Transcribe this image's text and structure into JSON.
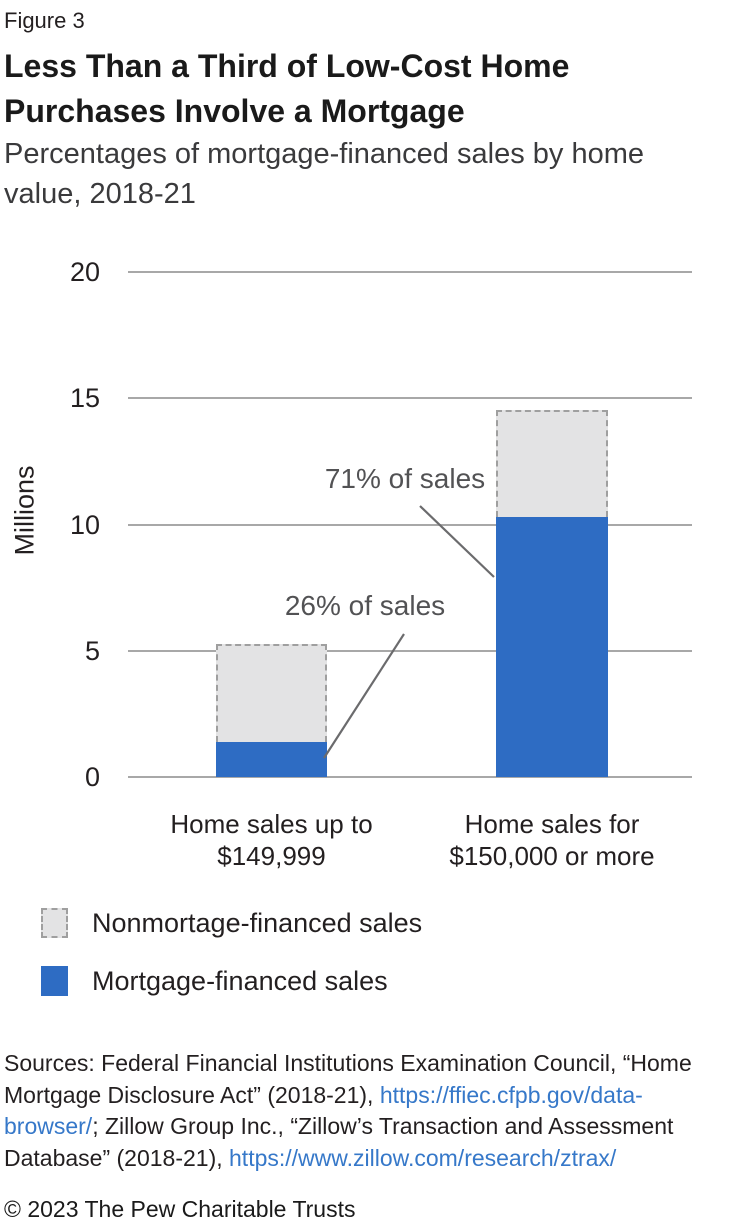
{
  "figure_label": "Figure 3",
  "title_lines": [
    "Less Than a Third of Low-Cost Home",
    "Purchases Involve a Mortgage"
  ],
  "subtitle_lines": [
    "Percentages of mortgage-financed sales by home",
    "value, 2018-21"
  ],
  "chart_data": {
    "type": "bar",
    "stacked": true,
    "title": "Less Than a Third of Low-Cost Home Purchases Involve a Mortgage",
    "subtitle": "Percentages of mortgage-financed sales by home value, 2018-21",
    "xlabel": "",
    "ylabel": "Millions",
    "ylim": [
      0,
      20
    ],
    "yticks": [
      0,
      5,
      10,
      15,
      20
    ],
    "grid": true,
    "legend_position": "bottom-left",
    "categories": [
      "Home sales up to $149,999",
      "Home sales for $150,000 or more"
    ],
    "category_label_lines": [
      [
        "Home sales up to",
        "$149,999"
      ],
      [
        "Home sales for",
        "$150,000 or more"
      ]
    ],
    "series": [
      {
        "name": "Mortgage-financed sales",
        "color": "#2e6cc3",
        "values": [
          1.4,
          10.3
        ]
      },
      {
        "name": "Nonmortgage-financed sales (dashed)",
        "color": "#e3e3e4",
        "values": [
          3.9,
          4.25
        ]
      }
    ],
    "totals": [
      5.3,
      14.55
    ],
    "annotations": [
      {
        "text": "26% of sales",
        "target_bar": 0
      },
      {
        "text": "71% of sales",
        "target_bar": 1
      }
    ]
  },
  "legend": [
    {
      "label": "Nonmortage-financed sales",
      "swatch": "dashed-gray-box"
    },
    {
      "label": "Mortgage-financed sales",
      "swatch": "solid-blue-box"
    }
  ],
  "colors": {
    "mortgage_blue": "#2e6cc3",
    "nonmortgage_gray_fill": "#e3e3e4",
    "dashed_border_gray": "#9f9f9f",
    "gridline_gray": "#a8a8a8",
    "annotation_gray": "#525254",
    "link_blue": "#3678c9"
  },
  "sources": {
    "lines": [
      [
        {
          "text": "Sources: Federal Financial Institutions Examination Council, “Home",
          "link": false
        }
      ],
      [
        {
          "text": "Mortgage Disclosure Act” (2018-21), ",
          "link": false
        },
        {
          "text": "https://ffiec.cfpb.gov/data-",
          "link": true
        }
      ],
      [
        {
          "text": "browser/",
          "link": true
        },
        {
          "text": "; Zillow Group Inc., “Zillow’s Transaction and Assessment",
          "link": false
        }
      ],
      [
        {
          "text": "Database” (2018-21), ",
          "link": false
        },
        {
          "text": "https://www.zillow.com/research/ztrax/",
          "link": true
        }
      ]
    ]
  },
  "footer": "© 2023 The Pew Charitable Trusts"
}
